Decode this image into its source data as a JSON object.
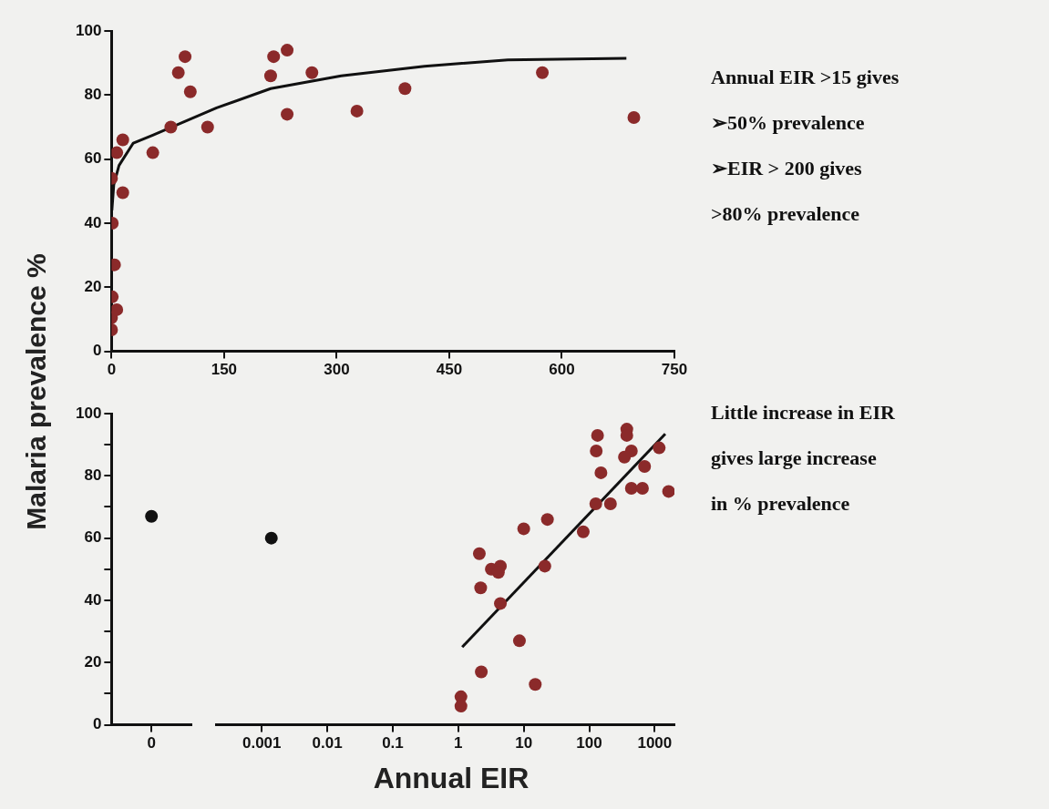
{
  "chart_data": [
    {
      "type": "scatter",
      "ylabel": "Malaria prevalence %",
      "xlim": [
        0,
        750
      ],
      "xticks": [
        0,
        150,
        300,
        450,
        600,
        750
      ],
      "ylim": [
        0,
        100
      ],
      "yticks": [
        0,
        20,
        40,
        60,
        80,
        100
      ],
      "grid": false,
      "legend": false,
      "marker": "circle",
      "annotations": [
        "Annual EIR >15 gives",
        "➢50% prevalence",
        "➢EIR > 200 gives",
        ">80% prevalence"
      ],
      "series": [
        {
          "type": "scatter",
          "color": "#8b2a2a",
          "x": [
            0,
            0,
            1,
            7,
            4,
            1,
            0,
            7,
            15,
            15,
            55,
            79,
            89,
            98,
            105,
            128,
            212,
            216,
            234,
            234,
            267,
            327,
            391,
            574,
            696
          ],
          "values": [
            6.7,
            10.5,
            17,
            13,
            27,
            40,
            54,
            62,
            66,
            49.5,
            62,
            70,
            87,
            92,
            81,
            70,
            86,
            92,
            94,
            74,
            87,
            75,
            82,
            87,
            73
          ]
        },
        {
          "type": "line",
          "marker": "none",
          "color": "#111111",
          "x": [
            0.5,
            3,
            10,
            29,
            55,
            140,
            212,
            306,
            417,
            528,
            686
          ],
          "values": [
            44,
            52,
            58,
            65,
            67.5,
            76,
            82,
            86,
            89,
            91,
            91.5
          ]
        }
      ]
    },
    {
      "type": "scatter",
      "categories": [
        "0"
      ],
      "ylim": [
        0,
        100
      ],
      "yticks": [
        0,
        {
          "value": 10,
          "label": null
        },
        20,
        {
          "value": 30,
          "label": null
        },
        40,
        {
          "value": 50,
          "label": null
        },
        60,
        {
          "value": 70,
          "label": null
        },
        80,
        {
          "value": 90,
          "label": null
        },
        100
      ],
      "grid": false,
      "legend": false,
      "marker": "circle",
      "series": [
        {
          "type": "scatter",
          "color": "#111111",
          "x": [
            "0"
          ],
          "values": [
            67
          ]
        }
      ]
    },
    {
      "type": "scatter",
      "xlabel": "Annual EIR",
      "log": "x",
      "xlim": [
        0.0002,
        2000
      ],
      "xticks": [
        0.001,
        0.01,
        0.1,
        1,
        10,
        100,
        1000
      ],
      "ylim": [
        0,
        100
      ],
      "yticks": [
        0,
        20,
        40,
        60,
        80,
        100
      ],
      "tick_labels": "x",
      "grid": false,
      "legend": false,
      "marker": "circle",
      "annotations": [
        "Little increase in EIR",
        "gives large increase",
        "in % prevalence"
      ],
      "series": [
        {
          "type": "scatter",
          "color": "#8b2a2a",
          "x": [
            1.1,
            1.1,
            2.1,
            2.2,
            2.25,
            3.2,
            4.4,
            4.1,
            4.4,
            8.6,
            10,
            15,
            21,
            23,
            81,
            126,
            211,
            134,
            128,
            151,
            375,
            375,
            440,
            345,
            700,
            440,
            650,
            1170,
            1630
          ],
          "values": [
            9,
            6,
            55,
            44,
            17,
            50,
            51,
            49,
            39,
            27,
            63,
            13,
            51,
            66,
            62,
            71,
            71,
            93,
            88,
            81,
            95,
            93,
            88,
            86,
            83,
            76,
            76,
            89,
            75
          ]
        },
        {
          "type": "scatter",
          "color": "#111111",
          "x": [
            0.0014
          ],
          "values": [
            60
          ]
        },
        {
          "type": "line",
          "marker": "none",
          "color": "#111111",
          "x": [
            1.15,
            1450
          ],
          "values": [
            25,
            93.5
          ]
        }
      ]
    }
  ]
}
